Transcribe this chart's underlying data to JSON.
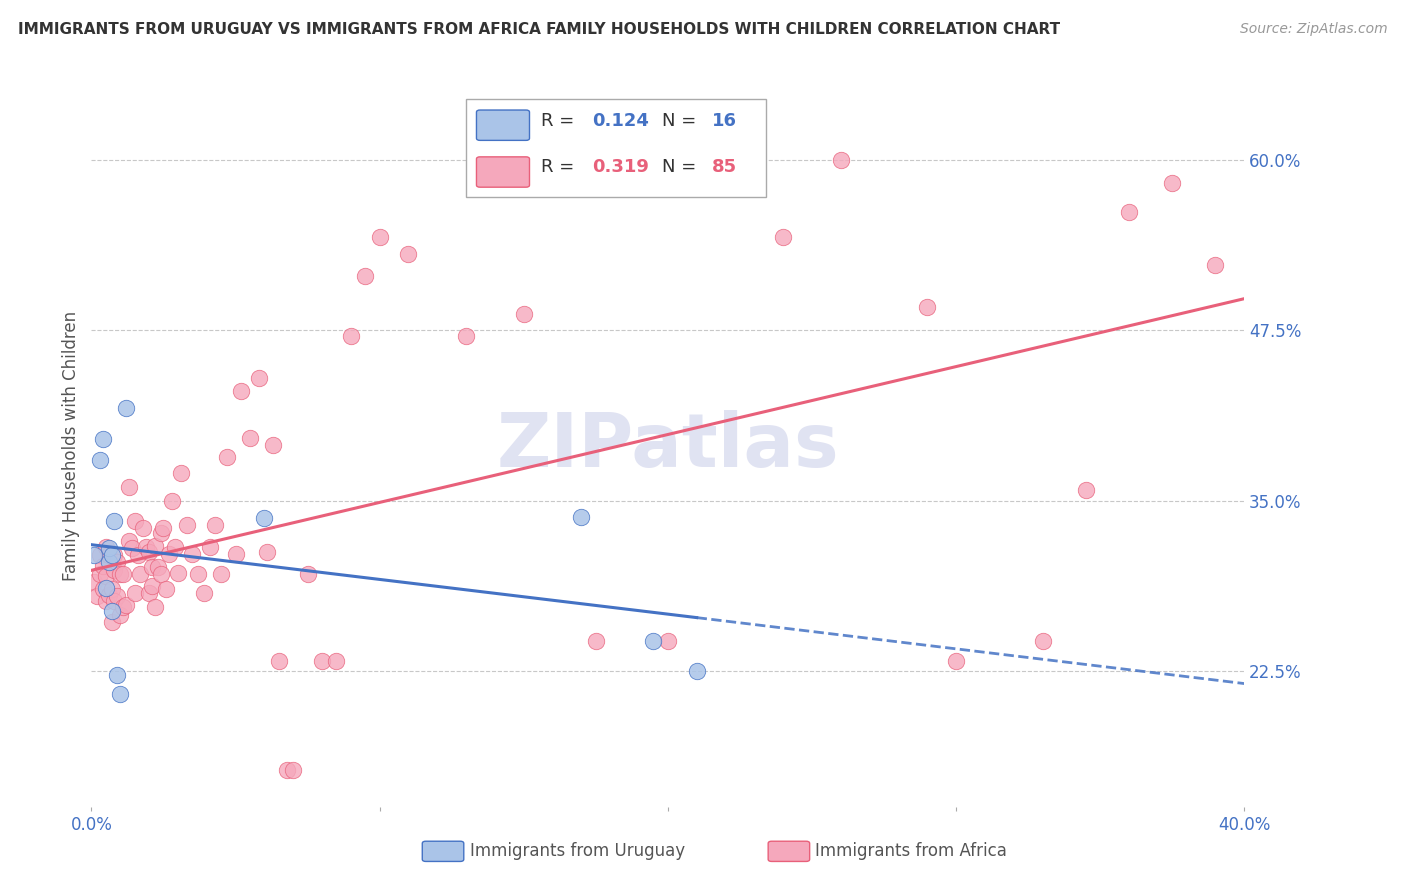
{
  "title": "IMMIGRANTS FROM URUGUAY VS IMMIGRANTS FROM AFRICA FAMILY HOUSEHOLDS WITH CHILDREN CORRELATION CHART",
  "source": "Source: ZipAtlas.com",
  "ylabel": "Family Households with Children",
  "xlim": [
    0.0,
    0.4
  ],
  "ylim": [
    0.125,
    0.655
  ],
  "yticks": [
    0.225,
    0.35,
    0.475,
    0.6
  ],
  "ytick_labels": [
    "22.5%",
    "35.0%",
    "47.5%",
    "60.0%"
  ],
  "xticks": [
    0.0,
    0.1,
    0.2,
    0.3,
    0.4
  ],
  "xtick_labels": [
    "0.0%",
    "",
    "",
    "",
    "40.0%"
  ],
  "uruguay_R": 0.124,
  "uruguay_N": 16,
  "africa_R": 0.319,
  "africa_N": 85,
  "uruguay_color": "#aac4e8",
  "africa_color": "#f5a8bc",
  "uruguay_line_color": "#4472c4",
  "africa_line_color": "#e8607a",
  "watermark": "ZIPatlas",
  "background_color": "#ffffff",
  "grid_color": "#c8c8c8",
  "axis_label_color": "#4472c4",
  "uruguay_scatter_x": [
    0.001,
    0.003,
    0.004,
    0.005,
    0.006,
    0.006,
    0.007,
    0.007,
    0.008,
    0.009,
    0.01,
    0.012,
    0.06,
    0.17,
    0.195,
    0.21
  ],
  "uruguay_scatter_y": [
    0.31,
    0.38,
    0.395,
    0.286,
    0.305,
    0.315,
    0.269,
    0.31,
    0.335,
    0.222,
    0.208,
    0.418,
    0.337,
    0.338,
    0.247,
    0.225
  ],
  "africa_scatter_x": [
    0.001,
    0.002,
    0.003,
    0.003,
    0.004,
    0.004,
    0.005,
    0.005,
    0.005,
    0.006,
    0.006,
    0.007,
    0.007,
    0.008,
    0.008,
    0.008,
    0.009,
    0.009,
    0.01,
    0.01,
    0.011,
    0.011,
    0.012,
    0.013,
    0.013,
    0.014,
    0.015,
    0.015,
    0.016,
    0.017,
    0.018,
    0.019,
    0.02,
    0.02,
    0.021,
    0.021,
    0.022,
    0.022,
    0.023,
    0.024,
    0.024,
    0.025,
    0.026,
    0.027,
    0.028,
    0.029,
    0.03,
    0.031,
    0.033,
    0.035,
    0.037,
    0.039,
    0.041,
    0.043,
    0.045,
    0.047,
    0.05,
    0.052,
    0.055,
    0.058,
    0.061,
    0.063,
    0.065,
    0.068,
    0.07,
    0.075,
    0.08,
    0.085,
    0.09,
    0.095,
    0.1,
    0.11,
    0.13,
    0.15,
    0.175,
    0.2,
    0.24,
    0.26,
    0.29,
    0.3,
    0.33,
    0.345,
    0.36,
    0.375,
    0.39
  ],
  "africa_scatter_y": [
    0.29,
    0.28,
    0.296,
    0.31,
    0.285,
    0.302,
    0.276,
    0.295,
    0.316,
    0.281,
    0.31,
    0.261,
    0.285,
    0.299,
    0.276,
    0.31,
    0.28,
    0.305,
    0.266,
    0.296,
    0.272,
    0.296,
    0.273,
    0.32,
    0.36,
    0.315,
    0.335,
    0.282,
    0.31,
    0.296,
    0.33,
    0.316,
    0.282,
    0.312,
    0.301,
    0.287,
    0.317,
    0.272,
    0.301,
    0.326,
    0.296,
    0.33,
    0.285,
    0.311,
    0.35,
    0.316,
    0.297,
    0.37,
    0.332,
    0.311,
    0.296,
    0.282,
    0.316,
    0.332,
    0.296,
    0.382,
    0.311,
    0.43,
    0.396,
    0.44,
    0.312,
    0.391,
    0.232,
    0.152,
    0.152,
    0.296,
    0.232,
    0.232,
    0.471,
    0.515,
    0.543,
    0.531,
    0.471,
    0.487,
    0.247,
    0.247,
    0.543,
    0.6,
    0.492,
    0.232,
    0.247,
    0.358,
    0.562,
    0.583,
    0.523
  ]
}
